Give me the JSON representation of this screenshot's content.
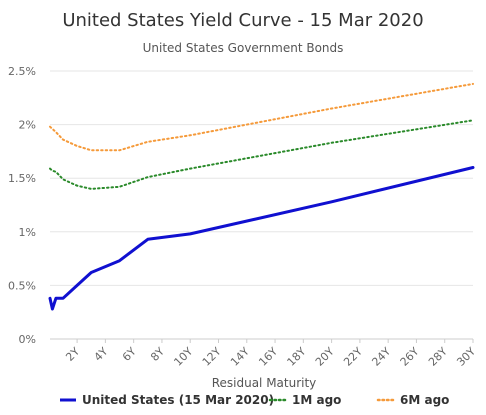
{
  "chart_data": {
    "type": "line",
    "title": "United States Yield Curve - 15 Mar 2020",
    "subtitle": "United States Government Bonds",
    "xlabel": "Residual Maturity",
    "ylabel": "",
    "xlim": [
      0.083,
      30
    ],
    "ylim": [
      0,
      2.5
    ],
    "x_ticks": [
      2,
      4,
      6,
      8,
      10,
      12,
      14,
      16,
      18,
      20,
      22,
      24,
      26,
      28,
      30
    ],
    "x_tick_labels": [
      "2Y",
      "4Y",
      "6Y",
      "8Y",
      "10Y",
      "12Y",
      "14Y",
      "16Y",
      "18Y",
      "20Y",
      "22Y",
      "24Y",
      "26Y",
      "28Y",
      "30Y"
    ],
    "y_ticks": [
      0,
      0.5,
      1,
      1.5,
      2,
      2.5
    ],
    "y_tick_labels": [
      "0%",
      "0.5%",
      "1%",
      "1.5%",
      "2%",
      "2.5%"
    ],
    "grid": true,
    "legend_position": "bottom",
    "series": [
      {
        "name": "United States (15 Mar 2020)",
        "color": "#1010d0",
        "style": "solid",
        "points": [
          [
            0.083,
            0.38
          ],
          [
            0.25,
            0.28
          ],
          [
            0.5,
            0.38
          ],
          [
            1,
            0.38
          ],
          [
            2,
            0.5
          ],
          [
            3,
            0.62
          ],
          [
            5,
            0.73
          ],
          [
            7,
            0.93
          ],
          [
            10,
            0.98
          ],
          [
            20,
            1.28
          ],
          [
            30,
            1.6
          ]
        ]
      },
      {
        "name": "1M ago",
        "color": "#2a8a2a",
        "style": "dotted",
        "points": [
          [
            0.083,
            1.59
          ],
          [
            0.25,
            1.57
          ],
          [
            0.5,
            1.56
          ],
          [
            1,
            1.49
          ],
          [
            2,
            1.43
          ],
          [
            3,
            1.4
          ],
          [
            5,
            1.42
          ],
          [
            7,
            1.51
          ],
          [
            10,
            1.59
          ],
          [
            20,
            1.83
          ],
          [
            30,
            2.04
          ]
        ]
      },
      {
        "name": "6M ago",
        "color": "#f59a3a",
        "style": "dotted",
        "points": [
          [
            0.083,
            1.98
          ],
          [
            0.25,
            1.96
          ],
          [
            0.5,
            1.93
          ],
          [
            1,
            1.86
          ],
          [
            2,
            1.8
          ],
          [
            3,
            1.76
          ],
          [
            5,
            1.76
          ],
          [
            7,
            1.84
          ],
          [
            10,
            1.9
          ],
          [
            20,
            2.15
          ],
          [
            30,
            2.38
          ]
        ]
      }
    ]
  }
}
